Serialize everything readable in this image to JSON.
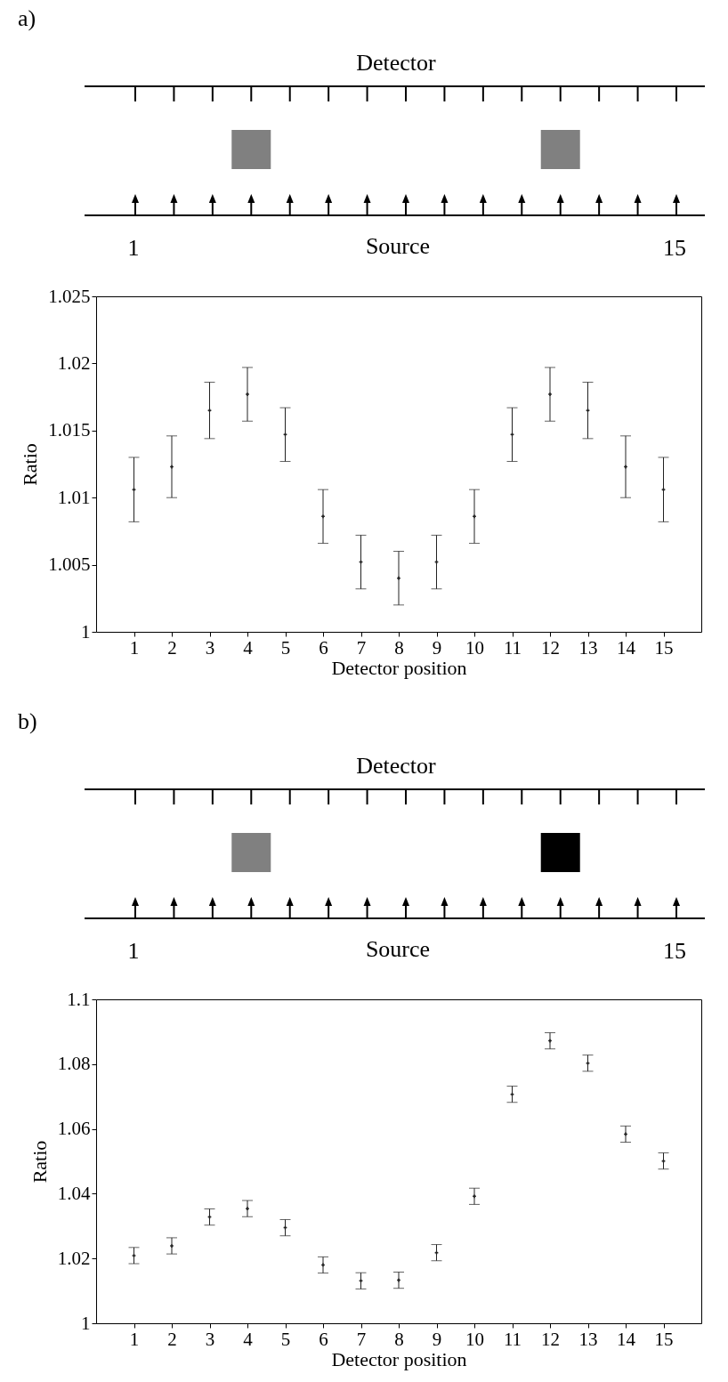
{
  "chart_data": [
    {
      "type": "scatter",
      "annotations": [
        "a)",
        "Detector",
        "1",
        "Source",
        "15"
      ],
      "xlabel": "Detector position",
      "ylabel": "Ratio",
      "x": [
        1,
        2,
        3,
        4,
        5,
        6,
        7,
        8,
        9,
        10,
        11,
        12,
        13,
        14,
        15
      ],
      "values": [
        1.0106,
        1.0123,
        1.0165,
        1.0177,
        1.0147,
        1.0086,
        1.0052,
        1.004,
        1.0052,
        1.0086,
        1.0147,
        1.0177,
        1.0165,
        1.0123,
        1.0106
      ],
      "errors": [
        0.0024,
        0.0023,
        0.0021,
        0.002,
        0.002,
        0.002,
        0.002,
        0.002,
        0.002,
        0.002,
        0.002,
        0.002,
        0.0021,
        0.0023,
        0.0024
      ],
      "color": "#222222",
      "marker": "cross",
      "grid": false,
      "xlim": [
        0,
        16
      ],
      "xticks": [
        1,
        2,
        3,
        4,
        5,
        6,
        7,
        8,
        9,
        10,
        11,
        12,
        13,
        14,
        15
      ],
      "ylim": [
        1,
        1.025
      ],
      "yticks": [
        1,
        1.005,
        1.01,
        1.015,
        1.02,
        1.025
      ]
    },
    {
      "type": "scatter",
      "annotations": [
        "b)",
        "Detector",
        "1",
        "Source",
        "15"
      ],
      "xlabel": "Detector position",
      "ylabel": "Ratio",
      "x": [
        1,
        2,
        3,
        4,
        5,
        6,
        7,
        8,
        9,
        10,
        11,
        12,
        13,
        14,
        15
      ],
      "values": [
        1.0209,
        1.0239,
        1.0328,
        1.0354,
        1.0295,
        1.018,
        1.0131,
        1.0133,
        1.0218,
        1.0392,
        1.0707,
        1.0872,
        1.0803,
        1.0584,
        1.0501
      ],
      "errors": [
        0.0025,
        0.0025,
        0.0025,
        0.0025,
        0.0025,
        0.0025,
        0.0025,
        0.0025,
        0.0025,
        0.0025,
        0.0025,
        0.0025,
        0.0025,
        0.0025,
        0.0025
      ],
      "color": "#222222",
      "marker": "cross",
      "grid": false,
      "xlim": [
        0,
        16
      ],
      "xticks": [
        1,
        2,
        3,
        4,
        5,
        6,
        7,
        8,
        9,
        10,
        11,
        12,
        13,
        14,
        15
      ],
      "ylim": [
        1,
        1.1
      ],
      "yticks": [
        1,
        1.02,
        1.04,
        1.06,
        1.08,
        1.1
      ]
    }
  ]
}
